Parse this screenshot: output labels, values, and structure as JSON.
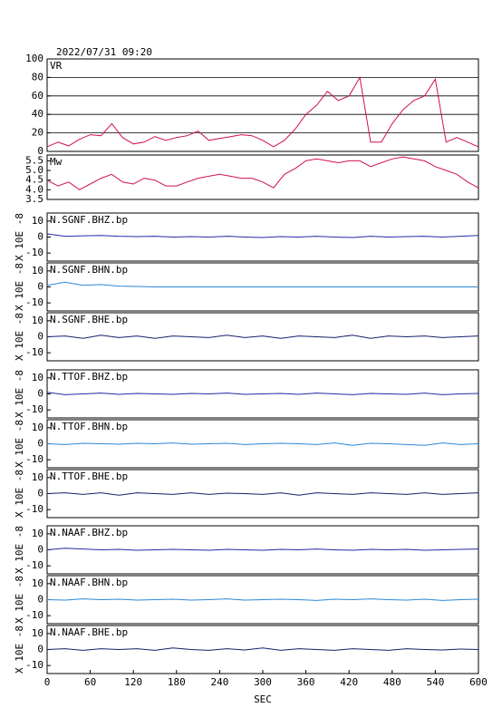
{
  "chart_data": [
    {
      "type": "line",
      "title": "2022/07/31 09:20",
      "grid": true,
      "x": [
        0,
        15,
        30,
        45,
        60,
        75,
        90,
        105,
        120,
        135,
        150,
        165,
        180,
        195,
        210,
        225,
        240,
        255,
        270,
        285,
        300,
        315,
        330,
        345,
        360,
        375,
        390,
        405,
        420,
        435,
        450,
        465,
        480,
        495,
        510,
        525,
        540,
        555,
        570,
        585,
        600
      ],
      "series": [
        {
          "name": "VR",
          "color": "#d0104c",
          "values": [
            5,
            10,
            6,
            13,
            18,
            17,
            30,
            15,
            8,
            10,
            16,
            12,
            15,
            17,
            22,
            12,
            14,
            16,
            18,
            17,
            12,
            5,
            12,
            24,
            40,
            50,
            65,
            55,
            60,
            80,
            10,
            10,
            30,
            45,
            55,
            60,
            78,
            10,
            15,
            10,
            5
          ]
        }
      ],
      "xlim": [
        0,
        600
      ],
      "ylim": [
        0,
        100
      ],
      "yticks": [
        0,
        20,
        40,
        60,
        80,
        100
      ]
    },
    {
      "type": "line",
      "x": [
        0,
        15,
        30,
        45,
        60,
        75,
        90,
        105,
        120,
        135,
        150,
        165,
        180,
        195,
        210,
        225,
        240,
        255,
        270,
        285,
        300,
        315,
        330,
        345,
        360,
        375,
        390,
        405,
        420,
        435,
        450,
        465,
        480,
        495,
        510,
        525,
        540,
        555,
        570,
        585,
        600
      ],
      "series": [
        {
          "name": "Mw",
          "color": "#d0104c",
          "values": [
            4.5,
            4.2,
            4.4,
            4.0,
            4.3,
            4.6,
            4.8,
            4.4,
            4.3,
            4.6,
            4.5,
            4.2,
            4.2,
            4.4,
            4.6,
            4.7,
            4.8,
            4.7,
            4.6,
            4.6,
            4.4,
            4.1,
            4.8,
            5.1,
            5.5,
            5.6,
            5.5,
            5.4,
            5.5,
            5.5,
            5.2,
            5.4,
            5.6,
            5.7,
            5.6,
            5.5,
            5.2,
            5.0,
            4.8,
            4.4,
            4.1
          ]
        }
      ],
      "xlim": [
        0,
        600
      ],
      "ylim": [
        3.5,
        5.8
      ],
      "yticks": [
        3.5,
        {
          "value": 4,
          "label": "4.0"
        },
        4.5,
        {
          "value": 5,
          "label": "5.0"
        },
        5.5
      ]
    },
    {
      "type": "line",
      "ylabel": "X 10E -8",
      "x": [
        0,
        25,
        50,
        75,
        100,
        125,
        150,
        175,
        200,
        225,
        250,
        275,
        300,
        325,
        350,
        375,
        400,
        425,
        450,
        475,
        500,
        525,
        550,
        575,
        600
      ],
      "series": [
        {
          "name": "N.SGNF.BHZ.bp",
          "color": "#2828a8",
          "values": [
            2,
            0.5,
            0.8,
            1,
            0.5,
            0.3,
            0.5,
            0,
            0.3,
            0,
            0.5,
            0,
            -0.3,
            0.3,
            0,
            0.5,
            0,
            -0.3,
            0.5,
            0,
            0.3,
            0.5,
            0,
            0.5,
            1
          ]
        }
      ],
      "xlim": [
        0,
        600
      ],
      "ylim": [
        -15,
        15
      ],
      "yticks": [
        -10,
        0,
        10
      ]
    },
    {
      "type": "line",
      "ylabel": "X 10E -8",
      "x": [
        0,
        25,
        50,
        75,
        100,
        125,
        150,
        175,
        200,
        225,
        250,
        275,
        300,
        325,
        350,
        375,
        400,
        425,
        450,
        475,
        500,
        525,
        550,
        575,
        600
      ],
      "series": [
        {
          "name": "N.SGNF.BHN.bp",
          "color": "#2a88d8",
          "values": [
            1,
            3,
            1,
            1.5,
            0.5,
            0.3,
            0,
            0,
            0,
            0,
            0,
            0,
            0,
            0,
            0,
            0,
            0,
            0,
            0,
            0,
            0,
            0,
            0,
            0,
            0
          ]
        }
      ],
      "xlim": [
        0,
        600
      ],
      "ylim": [
        -15,
        15
      ],
      "yticks": [
        -10,
        0,
        10
      ]
    },
    {
      "type": "line",
      "ylabel": "X 10E -8",
      "x": [
        0,
        25,
        50,
        75,
        100,
        125,
        150,
        175,
        200,
        225,
        250,
        275,
        300,
        325,
        350,
        375,
        400,
        425,
        450,
        475,
        500,
        525,
        550,
        575,
        600
      ],
      "series": [
        {
          "name": "N.SGNF.BHE.bp",
          "color": "#14206a",
          "values": [
            0,
            0.5,
            -1,
            1,
            -0.5,
            0.5,
            -1,
            0.5,
            0,
            -0.5,
            1,
            -0.5,
            0.5,
            -1,
            0.5,
            0,
            -0.5,
            1,
            -1,
            0.5,
            0,
            0.5,
            -0.5,
            0,
            0.5
          ]
        }
      ],
      "xlim": [
        0,
        600
      ],
      "ylim": [
        -15,
        15
      ],
      "yticks": [
        -10,
        0,
        10
      ]
    },
    {
      "type": "line",
      "ylabel": "X 10E -8",
      "x": [
        0,
        25,
        50,
        75,
        100,
        125,
        150,
        175,
        200,
        225,
        250,
        275,
        300,
        325,
        350,
        375,
        400,
        425,
        450,
        475,
        500,
        525,
        550,
        575,
        600
      ],
      "series": [
        {
          "name": "N.TTOF.BHZ.bp",
          "color": "#2828a8",
          "values": [
            1,
            -0.5,
            0,
            0.5,
            -0.3,
            0.3,
            0,
            -0.3,
            0.3,
            0,
            0.5,
            -0.3,
            0,
            0.3,
            -0.3,
            0.5,
            0,
            -0.5,
            0.3,
            0,
            -0.3,
            0.5,
            -0.5,
            0,
            0.3
          ]
        }
      ],
      "xlim": [
        0,
        600
      ],
      "ylim": [
        -15,
        15
      ],
      "yticks": [
        -10,
        0,
        10
      ]
    },
    {
      "type": "line",
      "ylabel": "X 10E -8",
      "x": [
        0,
        25,
        50,
        75,
        100,
        125,
        150,
        175,
        200,
        225,
        250,
        275,
        300,
        325,
        350,
        375,
        400,
        425,
        450,
        475,
        500,
        525,
        550,
        575,
        600
      ],
      "series": [
        {
          "name": "N.TTOF.BHN.bp",
          "color": "#2a88d8",
          "values": [
            0,
            -0.5,
            0.3,
            0,
            -0.3,
            0.3,
            0,
            0.5,
            -0.3,
            0,
            0.3,
            -0.5,
            0,
            0.3,
            0,
            -0.5,
            0.5,
            -1,
            0.3,
            0,
            -0.5,
            -1,
            0.5,
            -0.5,
            0
          ]
        }
      ],
      "xlim": [
        0,
        600
      ],
      "ylim": [
        -15,
        15
      ],
      "yticks": [
        -10,
        0,
        10
      ]
    },
    {
      "type": "line",
      "ylabel": "X 10E -8",
      "x": [
        0,
        25,
        50,
        75,
        100,
        125,
        150,
        175,
        200,
        225,
        250,
        275,
        300,
        325,
        350,
        375,
        400,
        425,
        450,
        475,
        500,
        525,
        550,
        575,
        600
      ],
      "series": [
        {
          "name": "N.TTOF.BHE.bp",
          "color": "#14206a",
          "values": [
            0,
            0.5,
            -0.5,
            0.5,
            -1,
            0.5,
            0,
            -0.5,
            0.5,
            -0.5,
            0.3,
            0,
            -0.5,
            0.5,
            -1,
            0.5,
            0,
            -0.5,
            0.5,
            0,
            -0.5,
            0.5,
            -0.5,
            0,
            0.5
          ]
        }
      ],
      "xlim": [
        0,
        600
      ],
      "ylim": [
        -15,
        15
      ],
      "yticks": [
        -10,
        0,
        10
      ]
    },
    {
      "type": "line",
      "ylabel": "X 10E -8",
      "x": [
        0,
        25,
        50,
        75,
        100,
        125,
        150,
        175,
        200,
        225,
        250,
        275,
        300,
        325,
        350,
        375,
        400,
        425,
        450,
        475,
        500,
        525,
        550,
        575,
        600
      ],
      "series": [
        {
          "name": "N.NAAF.BHZ.bp",
          "color": "#2828a8",
          "values": [
            0,
            1,
            0.5,
            0,
            0.3,
            -0.3,
            0,
            0.3,
            0,
            -0.3,
            0.3,
            0,
            -0.3,
            0.3,
            0,
            0.5,
            0,
            -0.3,
            0.3,
            0,
            0.3,
            -0.3,
            0,
            0.3,
            0.5
          ]
        }
      ],
      "xlim": [
        0,
        600
      ],
      "ylim": [
        -15,
        15
      ],
      "yticks": [
        -10,
        0,
        10
      ]
    },
    {
      "type": "line",
      "ylabel": "X 10E -8",
      "x": [
        0,
        25,
        50,
        75,
        100,
        125,
        150,
        175,
        200,
        225,
        250,
        275,
        300,
        325,
        350,
        375,
        400,
        425,
        450,
        475,
        500,
        525,
        550,
        575,
        600
      ],
      "series": [
        {
          "name": "N.NAAF.BHN.bp",
          "color": "#2a88d8",
          "values": [
            0,
            -0.3,
            0.5,
            0,
            0.3,
            -0.3,
            0,
            0.3,
            -0.3,
            0,
            0.5,
            -0.3,
            0,
            0.3,
            0,
            -0.5,
            0.3,
            0,
            0.5,
            0,
            -0.3,
            0.3,
            -0.5,
            0,
            0.3
          ]
        }
      ],
      "xlim": [
        0,
        600
      ],
      "ylim": [
        -15,
        15
      ],
      "yticks": [
        -10,
        0,
        10
      ]
    },
    {
      "type": "line",
      "ylabel": "X 10E -8",
      "xlabel": "SEC",
      "x": [
        0,
        25,
        50,
        75,
        100,
        125,
        150,
        175,
        200,
        225,
        250,
        275,
        300,
        325,
        350,
        375,
        400,
        425,
        450,
        475,
        500,
        525,
        550,
        575,
        600
      ],
      "series": [
        {
          "name": "N.NAAF.BHE.bp",
          "color": "#14206a",
          "values": [
            0,
            0.5,
            -0.5,
            0.5,
            0,
            0.5,
            -0.5,
            1,
            0,
            -0.5,
            0.5,
            -0.3,
            1,
            -0.5,
            0.5,
            0,
            -0.5,
            0.5,
            0,
            -0.5,
            0.5,
            0,
            -0.3,
            0.3,
            0
          ]
        }
      ],
      "xlim": [
        0,
        600
      ],
      "ylim": [
        -15,
        15
      ],
      "yticks": [
        -10,
        0,
        10
      ],
      "xticks": [
        0,
        60,
        120,
        180,
        240,
        300,
        360,
        420,
        480,
        540,
        600
      ]
    }
  ]
}
